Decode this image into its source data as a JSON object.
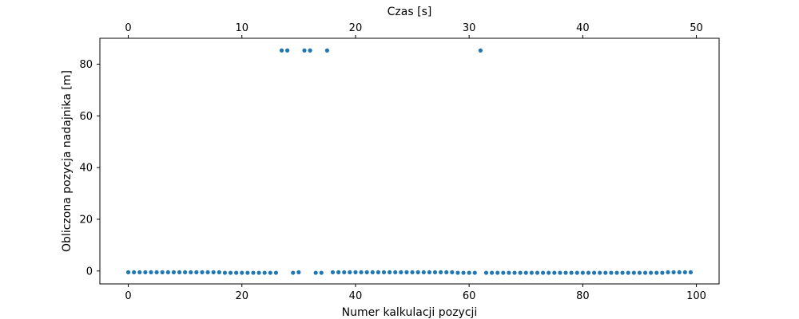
{
  "chart_data": {
    "type": "scatter",
    "title": "",
    "xlabel": "Numer kalkulacji pozycji",
    "ylabel": "Obliczona pozycja nadajnika [m]",
    "secondary_xlabel": "Czas [s]",
    "xlim": [
      -5,
      104
    ],
    "ylim": [
      -5,
      90
    ],
    "secondary_xlim": [
      -2.5,
      52
    ],
    "x_ticks": [
      "0",
      "20",
      "40",
      "60",
      "80",
      "100"
    ],
    "x_tick_values": [
      0,
      20,
      40,
      60,
      80,
      100
    ],
    "y_ticks": [
      "0",
      "20",
      "40",
      "60",
      "80"
    ],
    "y_tick_values": [
      0,
      20,
      40,
      60,
      80
    ],
    "secondary_x_ticks": [
      "0",
      "10",
      "20",
      "30",
      "40",
      "50"
    ],
    "secondary_x_tick_values": [
      0,
      10,
      20,
      30,
      40,
      50
    ],
    "grid": false,
    "legend": "none",
    "marker_color": "#1f77b4",
    "series": [
      {
        "points": [
          [
            0,
            -0.5
          ],
          [
            1,
            -0.5
          ],
          [
            2,
            -0.5
          ],
          [
            3,
            -0.5
          ],
          [
            4,
            -0.5
          ],
          [
            5,
            -0.5
          ],
          [
            6,
            -0.5
          ],
          [
            7,
            -0.5
          ],
          [
            8,
            -0.5
          ],
          [
            9,
            -0.5
          ],
          [
            10,
            -0.5
          ],
          [
            11,
            -0.5
          ],
          [
            12,
            -0.5
          ],
          [
            13,
            -0.5
          ],
          [
            14,
            -0.5
          ],
          [
            15,
            -0.5
          ],
          [
            16,
            -0.5
          ],
          [
            17,
            -0.7
          ],
          [
            18,
            -0.7
          ],
          [
            19,
            -0.7
          ],
          [
            20,
            -0.7
          ],
          [
            21,
            -0.7
          ],
          [
            22,
            -0.7
          ],
          [
            23,
            -0.7
          ],
          [
            24,
            -0.7
          ],
          [
            25,
            -0.7
          ],
          [
            26,
            -0.7
          ],
          [
            27,
            85.3
          ],
          [
            28,
            85.3
          ],
          [
            29,
            -0.7
          ],
          [
            30,
            -0.5
          ],
          [
            31,
            85.3
          ],
          [
            32,
            85.3
          ],
          [
            33,
            -0.7
          ],
          [
            34,
            -0.7
          ],
          [
            35,
            85.3
          ],
          [
            36,
            -0.5
          ],
          [
            37,
            -0.5
          ],
          [
            38,
            -0.5
          ],
          [
            39,
            -0.5
          ],
          [
            40,
            -0.5
          ],
          [
            41,
            -0.5
          ],
          [
            42,
            -0.5
          ],
          [
            43,
            -0.5
          ],
          [
            44,
            -0.5
          ],
          [
            45,
            -0.5
          ],
          [
            46,
            -0.5
          ],
          [
            47,
            -0.5
          ],
          [
            48,
            -0.5
          ],
          [
            49,
            -0.5
          ],
          [
            50,
            -0.5
          ],
          [
            51,
            -0.5
          ],
          [
            52,
            -0.5
          ],
          [
            53,
            -0.5
          ],
          [
            54,
            -0.5
          ],
          [
            55,
            -0.5
          ],
          [
            56,
            -0.5
          ],
          [
            57,
            -0.5
          ],
          [
            58,
            -0.7
          ],
          [
            59,
            -0.7
          ],
          [
            60,
            -0.7
          ],
          [
            61,
            -0.7
          ],
          [
            62,
            85.3
          ],
          [
            63,
            -0.7
          ],
          [
            64,
            -0.7
          ],
          [
            65,
            -0.7
          ],
          [
            66,
            -0.7
          ],
          [
            67,
            -0.7
          ],
          [
            68,
            -0.7
          ],
          [
            69,
            -0.7
          ],
          [
            70,
            -0.7
          ],
          [
            71,
            -0.7
          ],
          [
            72,
            -0.7
          ],
          [
            73,
            -0.7
          ],
          [
            74,
            -0.7
          ],
          [
            75,
            -0.7
          ],
          [
            76,
            -0.7
          ],
          [
            77,
            -0.7
          ],
          [
            78,
            -0.7
          ],
          [
            79,
            -0.7
          ],
          [
            80,
            -0.7
          ],
          [
            81,
            -0.7
          ],
          [
            82,
            -0.7
          ],
          [
            83,
            -0.7
          ],
          [
            84,
            -0.7
          ],
          [
            85,
            -0.7
          ],
          [
            86,
            -0.7
          ],
          [
            87,
            -0.7
          ],
          [
            88,
            -0.7
          ],
          [
            89,
            -0.7
          ],
          [
            90,
            -0.7
          ],
          [
            91,
            -0.7
          ],
          [
            92,
            -0.7
          ],
          [
            93,
            -0.7
          ],
          [
            94,
            -0.7
          ],
          [
            95,
            -0.5
          ],
          [
            96,
            -0.5
          ],
          [
            97,
            -0.5
          ],
          [
            98,
            -0.5
          ],
          [
            99,
            -0.5
          ]
        ]
      }
    ]
  }
}
